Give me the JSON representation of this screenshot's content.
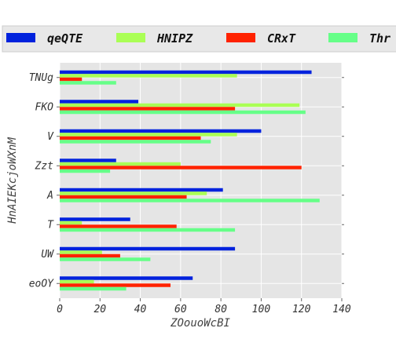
{
  "chart_data": {
    "type": "bar",
    "orientation": "horizontal",
    "xlabel": "ZOouoWcBI",
    "ylabel": "HnAIEKcjoWXnM",
    "xlim": [
      0,
      140
    ],
    "xticks": [
      0,
      20,
      40,
      60,
      80,
      100,
      120,
      140
    ],
    "grid": true,
    "legend_position": "top",
    "categories": [
      "TNUg",
      "FKO",
      "V",
      "Zzt",
      "A",
      "T",
      "UW",
      "eoOY"
    ],
    "series": [
      {
        "name": "qeQTE",
        "color": "#0022dd",
        "values": [
          125,
          39,
          100,
          28,
          81,
          35,
          87,
          66
        ]
      },
      {
        "name": "HNIPZ",
        "color": "#aaff55",
        "values": [
          88,
          119,
          88,
          60,
          73,
          11,
          21,
          17
        ]
      },
      {
        "name": "CRxT",
        "color": "#ff2200",
        "values": [
          11,
          87,
          70,
          120,
          63,
          58,
          30,
          55
        ]
      },
      {
        "name": "Thr",
        "color": "#66ff88",
        "values": [
          28,
          122,
          75,
          25,
          129,
          87,
          45,
          33
        ]
      }
    ]
  }
}
